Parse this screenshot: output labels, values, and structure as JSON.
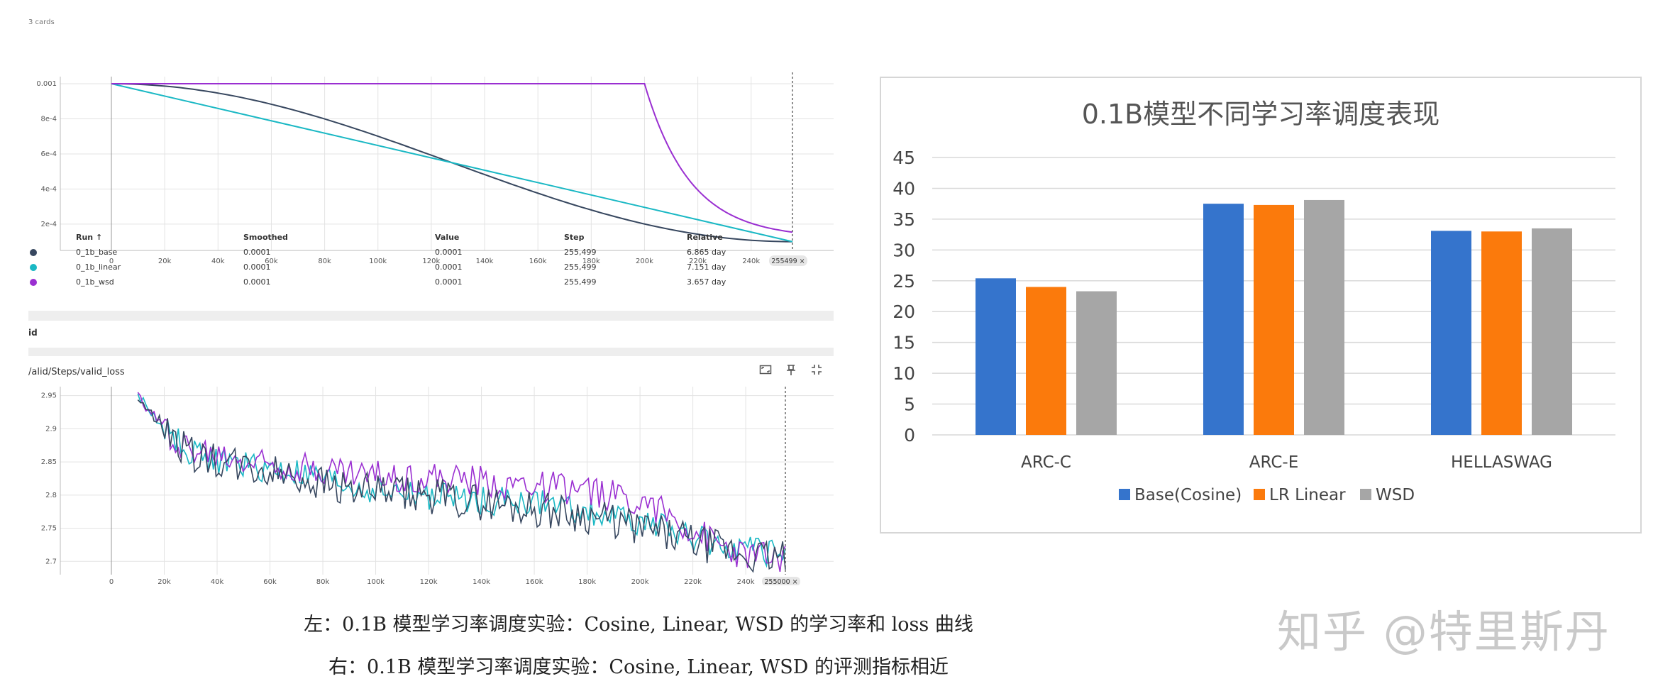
{
  "left_panel": {
    "card_label": "3 cards",
    "lr_chart_ticks_x": [
      "0",
      "20k",
      "40k",
      "60k",
      "80k",
      "100k",
      "120k",
      "140k",
      "160k",
      "180k",
      "200k",
      "220k",
      "240k"
    ],
    "lr_cursor_label": "255499 ×",
    "lr_ticks_y": [
      "0.001",
      "8e-4",
      "6e-4",
      "4e-4",
      "2e-4"
    ],
    "table": {
      "headers": [
        "Run ↑",
        "Smoothed",
        "Value",
        "Step",
        "Relative"
      ],
      "rows": [
        {
          "run": "0_1b_base",
          "smoothed": "0.0001",
          "value": "0.0001",
          "step": "255,499",
          "relative": "6.865 day",
          "color": "#37475f"
        },
        {
          "run": "0_1b_linear",
          "smoothed": "0.0001",
          "value": "0.0001",
          "step": "255,499",
          "relative": "7.151 day",
          "color": "#1ab8c4"
        },
        {
          "run": "0_1b_wsd",
          "smoothed": "0.0001",
          "value": "0.0001",
          "step": "255,499",
          "relative": "3.657 day",
          "color": "#9a2fd1"
        }
      ]
    },
    "section_label": "id",
    "loss_panel_title": "/alid/Steps/valid_loss",
    "loss_ticks_y": [
      "2.95",
      "2.9",
      "2.85",
      "2.8",
      "2.75",
      "2.7"
    ],
    "loss_ticks_x": [
      "0",
      "20k",
      "40k",
      "60k",
      "80k",
      "100k",
      "120k",
      "140k",
      "160k",
      "180k",
      "200k",
      "220k",
      "240k"
    ],
    "loss_cursor_label": "255000 ×",
    "icons": {
      "expand": "fullscreen-icon",
      "pin": "pin-icon",
      "fit": "fit-domain-icon"
    }
  },
  "chart_data": [
    {
      "type": "line",
      "title": "",
      "xlabel": "",
      "ylabel": "",
      "xlim": [
        0,
        255499
      ],
      "ylim": [
        5e-05,
        0.001
      ],
      "grid": true,
      "series": [
        {
          "name": "0_1b_base",
          "color": "#37475f",
          "x": [
            0,
            20000,
            40000,
            60000,
            80000,
            100000,
            120000,
            140000,
            160000,
            180000,
            200000,
            220000,
            240000,
            255499
          ],
          "y": [
            0.001,
            0.000985,
            0.00094,
            0.00087,
            0.00078,
            0.00068,
            0.000575,
            0.00047,
            0.00037,
            0.00028,
            0.0002,
            0.000145,
            0.00011,
            0.0001
          ]
        },
        {
          "name": "0_1b_linear",
          "color": "#1ab8c4",
          "x": [
            0,
            255499
          ],
          "y": [
            0.001,
            0.0001
          ]
        },
        {
          "name": "0_1b_wsd",
          "color": "#9a2fd1",
          "x": [
            0,
            200000,
            205000,
            210000,
            215000,
            220000,
            225000,
            230000,
            235000,
            240000,
            245000,
            250000,
            255499
          ],
          "y": [
            0.001,
            0.001,
            0.00088,
            0.00075,
            0.00064,
            0.00054,
            0.00045,
            0.00037,
            0.0003,
            0.00024,
            0.00019,
            0.00015,
            0.00012
          ]
        }
      ]
    },
    {
      "type": "line",
      "title": "valid_loss",
      "xlabel": "",
      "ylabel": "",
      "xlim": [
        0,
        255499
      ],
      "ylim": [
        2.68,
        2.955
      ],
      "grid": true,
      "series": [
        {
          "name": "0_1b_base",
          "color": "#37475f",
          "x": [
            10000,
            20000,
            30000,
            40000,
            50000,
            60000,
            70000,
            80000,
            90000,
            100000,
            110000,
            120000,
            130000,
            140000,
            150000,
            160000,
            170000,
            180000,
            190000,
            200000,
            210000,
            220000,
            230000,
            240000,
            250000,
            255000
          ],
          "y": [
            2.95,
            2.9,
            2.86,
            2.85,
            2.84,
            2.835,
            2.83,
            2.82,
            2.81,
            2.805,
            2.8,
            2.8,
            2.795,
            2.79,
            2.785,
            2.78,
            2.775,
            2.77,
            2.76,
            2.75,
            2.74,
            2.73,
            2.72,
            2.71,
            2.705,
            2.71
          ]
        },
        {
          "name": "0_1b_linear",
          "color": "#1ab8c4",
          "x": [
            10000,
            20000,
            30000,
            40000,
            50000,
            60000,
            70000,
            80000,
            90000,
            100000,
            110000,
            120000,
            130000,
            140000,
            150000,
            160000,
            170000,
            180000,
            190000,
            200000,
            210000,
            220000,
            230000,
            240000,
            250000,
            255000
          ],
          "y": [
            2.95,
            2.9,
            2.865,
            2.852,
            2.843,
            2.838,
            2.832,
            2.823,
            2.813,
            2.808,
            2.803,
            2.8,
            2.797,
            2.793,
            2.79,
            2.787,
            2.782,
            2.777,
            2.768,
            2.758,
            2.748,
            2.737,
            2.727,
            2.717,
            2.71,
            2.712
          ]
        },
        {
          "name": "0_1b_wsd",
          "color": "#9a2fd1",
          "x": [
            10000,
            20000,
            30000,
            40000,
            50000,
            60000,
            70000,
            80000,
            90000,
            100000,
            110000,
            120000,
            130000,
            140000,
            150000,
            160000,
            170000,
            180000,
            190000,
            200000,
            210000,
            220000,
            230000,
            240000,
            250000,
            255000
          ],
          "y": [
            2.95,
            2.9,
            2.868,
            2.86,
            2.853,
            2.85,
            2.845,
            2.84,
            2.835,
            2.83,
            2.828,
            2.825,
            2.823,
            2.82,
            2.817,
            2.815,
            2.81,
            2.805,
            2.8,
            2.795,
            2.77,
            2.745,
            2.725,
            2.71,
            2.705,
            2.708
          ]
        }
      ]
    },
    {
      "type": "bar",
      "title": "0.1B模型不同学习率调度表现",
      "xlabel": "",
      "ylabel": "",
      "ylim": [
        0,
        45
      ],
      "yticks": [
        0,
        5,
        10,
        15,
        20,
        25,
        30,
        35,
        40,
        45
      ],
      "grid": true,
      "legend_position": "bottom",
      "categories": [
        "ARC-C",
        "ARC-E",
        "HELLASWAG"
      ],
      "series": [
        {
          "name": "Base(Cosine)",
          "color": "#3574cc",
          "values": [
            25.4,
            37.5,
            33.1
          ]
        },
        {
          "name": "LR Linear",
          "color": "#fb7a0c",
          "values": [
            24.0,
            37.3,
            33.0
          ]
        },
        {
          "name": "WSD",
          "color": "#a6a6a6",
          "values": [
            23.3,
            38.1,
            33.5
          ]
        }
      ]
    }
  ],
  "captions": {
    "line1": "左：0.1B 模型学习率调度实验：Cosine, Linear, WSD 的学习率和 loss 曲线",
    "line2": "右：0.1B 模型学习率调度实验：Cosine, Linear, WSD 的评测指标相近"
  },
  "watermark": "知乎 @特里斯丹"
}
